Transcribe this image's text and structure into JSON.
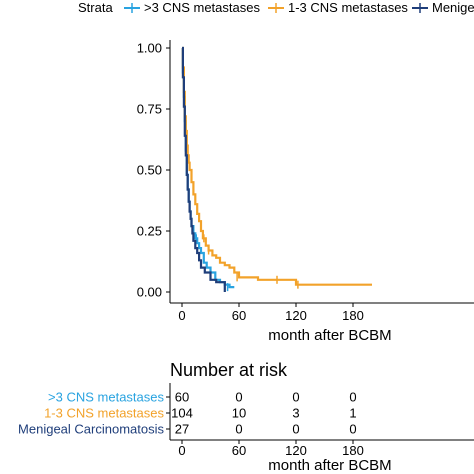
{
  "legend": {
    "title": "Strata",
    "entries": [
      ">3 CNS metastases",
      "1-3 CNS metastases",
      "Menige"
    ]
  },
  "chart_data": [
    {
      "type": "line",
      "subtype": "kaplan-meier",
      "title": "",
      "xlabel": "month after BCBM",
      "ylabel": "",
      "xlim": [
        0,
        200
      ],
      "ylim": [
        0,
        1
      ],
      "xticks": [
        0,
        60,
        120,
        180
      ],
      "xtick_labels": [
        "0",
        "60",
        "120",
        "180"
      ],
      "yticks": [
        0,
        0.25,
        0.5,
        0.75,
        1
      ],
      "ytick_labels": [
        "0.00",
        "0.25",
        "0.50",
        "0.75",
        "1.00"
      ],
      "grid": false,
      "legend_position": "top",
      "series": [
        {
          "name": ">3 CNS metastases",
          "color": "#29a3e0",
          "x": [
            0,
            1,
            2,
            3,
            4,
            5,
            6,
            7,
            8,
            9,
            10,
            12,
            14,
            16,
            18,
            20,
            23,
            26,
            30,
            35,
            40,
            45,
            50,
            55
          ],
          "y": [
            1.0,
            0.9,
            0.8,
            0.7,
            0.58,
            0.48,
            0.42,
            0.37,
            0.33,
            0.3,
            0.27,
            0.24,
            0.22,
            0.2,
            0.18,
            0.16,
            0.12,
            0.1,
            0.08,
            0.05,
            0.04,
            0.03,
            0.02,
            0.02
          ],
          "censor_x": [
            12,
            15,
            48
          ],
          "censor_y": [
            0.24,
            0.22,
            0.02
          ]
        },
        {
          "name": "1-3 CNS metastases",
          "color": "#f2a22a",
          "x": [
            0,
            1,
            2,
            3,
            4,
            5,
            6,
            7,
            8,
            10,
            12,
            14,
            16,
            18,
            20,
            22,
            25,
            28,
            32,
            36,
            40,
            45,
            50,
            55,
            60,
            70,
            80,
            100,
            120,
            140,
            160,
            180,
            200
          ],
          "y": [
            1.0,
            0.92,
            0.82,
            0.72,
            0.66,
            0.6,
            0.56,
            0.53,
            0.5,
            0.45,
            0.4,
            0.36,
            0.32,
            0.29,
            0.25,
            0.22,
            0.19,
            0.17,
            0.15,
            0.14,
            0.12,
            0.11,
            0.1,
            0.08,
            0.06,
            0.06,
            0.05,
            0.05,
            0.03,
            0.03,
            0.03,
            0.03,
            0.03
          ],
          "censor_x": [
            23,
            28,
            58,
            100,
            122
          ],
          "censor_y": [
            0.22,
            0.17,
            0.06,
            0.05,
            0.03
          ]
        },
        {
          "name": "Menigeal Carcinomatosis",
          "color": "#1f3e7a",
          "x": [
            0,
            1,
            2,
            3,
            4,
            5,
            6,
            7,
            8,
            9,
            10,
            11,
            12,
            14,
            16,
            18,
            20,
            24,
            30,
            36,
            42,
            45
          ],
          "y": [
            1.0,
            0.88,
            0.76,
            0.64,
            0.56,
            0.48,
            0.42,
            0.37,
            0.33,
            0.3,
            0.27,
            0.24,
            0.21,
            0.18,
            0.16,
            0.13,
            0.1,
            0.08,
            0.05,
            0.04,
            0.04,
            0.0
          ],
          "censor_x": [],
          "censor_y": []
        }
      ]
    },
    {
      "type": "table",
      "title": "Number at risk",
      "xlabel": "month after BCBM",
      "xticks": [
        0,
        60,
        120,
        180
      ],
      "xtick_labels": [
        "0",
        "60",
        "120",
        "180"
      ],
      "rows": [
        {
          "name": ">3 CNS metastases",
          "color": "#29a3e0",
          "values": [
            "60",
            "0",
            "0",
            "0"
          ]
        },
        {
          "name": "1-3 CNS metastases",
          "color": "#f2a22a",
          "values": [
            "104",
            "10",
            "3",
            "1"
          ]
        },
        {
          "name": "Menigeal Carcinomatosis",
          "color": "#1f3e7a",
          "values": [
            "27",
            "0",
            "0",
            "0"
          ]
        }
      ]
    }
  ]
}
